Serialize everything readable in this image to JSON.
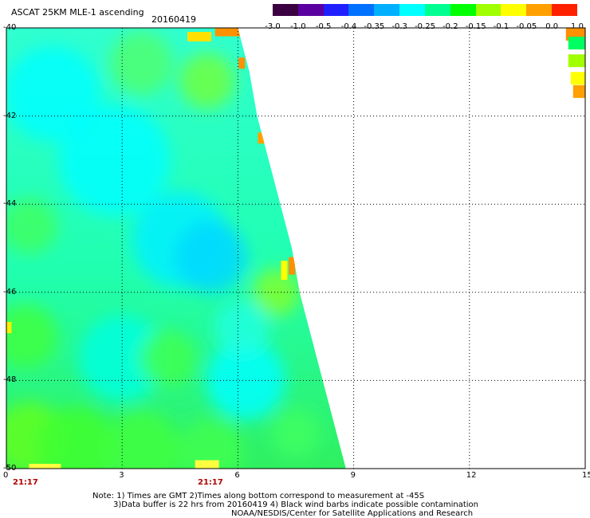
{
  "header": {
    "title": "ASCAT 25KM MLE-1 ascending",
    "date": "20160419"
  },
  "colorbar": {
    "colors": [
      "#3a0040",
      "#5a00a0",
      "#2020ff",
      "#0070ff",
      "#00b0ff",
      "#00ffff",
      "#00ff90",
      "#00ff00",
      "#a0ff00",
      "#ffff00",
      "#ffa000",
      "#ff2000"
    ],
    "labels": [
      "-3.0",
      "-1.0",
      "-0.5",
      "-0.4",
      "-0.35",
      "-0.3",
      "-0.25",
      "-0.2",
      "-0.15",
      "-0.1",
      "-0.05",
      "0.0",
      "1.0"
    ]
  },
  "axes": {
    "x_ticks": [
      "0",
      "3",
      "6",
      "9",
      "12",
      "15"
    ],
    "y_ticks": [
      "-40",
      "-42",
      "-44",
      "-46",
      "-48",
      "-50"
    ],
    "x_range": [
      0,
      15
    ],
    "y_range": [
      -50,
      -40
    ],
    "grid": "dotted"
  },
  "times": [
    "21:17",
    "21:17"
  ],
  "notes": [
    "Note: 1) Times are GMT 2)Times along bottom correspond to measurement at -45S",
    "3)Data buffer is 22 hrs from 20160419 4) Black wind barbs indicate possible contamination",
    "NOAA/NESDIS/Center for Satellite Applications and Research"
  ],
  "swath": {
    "right_edge_lon": [
      [
        -40,
        6.0
      ],
      [
        -41,
        6.3
      ],
      [
        -42,
        6.5
      ],
      [
        -43,
        6.8
      ],
      [
        -44,
        7.1
      ],
      [
        -45,
        7.4
      ],
      [
        -46,
        7.6
      ],
      [
        -47,
        7.9
      ],
      [
        -48,
        8.2
      ],
      [
        -49,
        8.5
      ],
      [
        -50,
        8.8
      ]
    ],
    "corner_top_right_lon": [
      14.5,
      15
    ]
  }
}
